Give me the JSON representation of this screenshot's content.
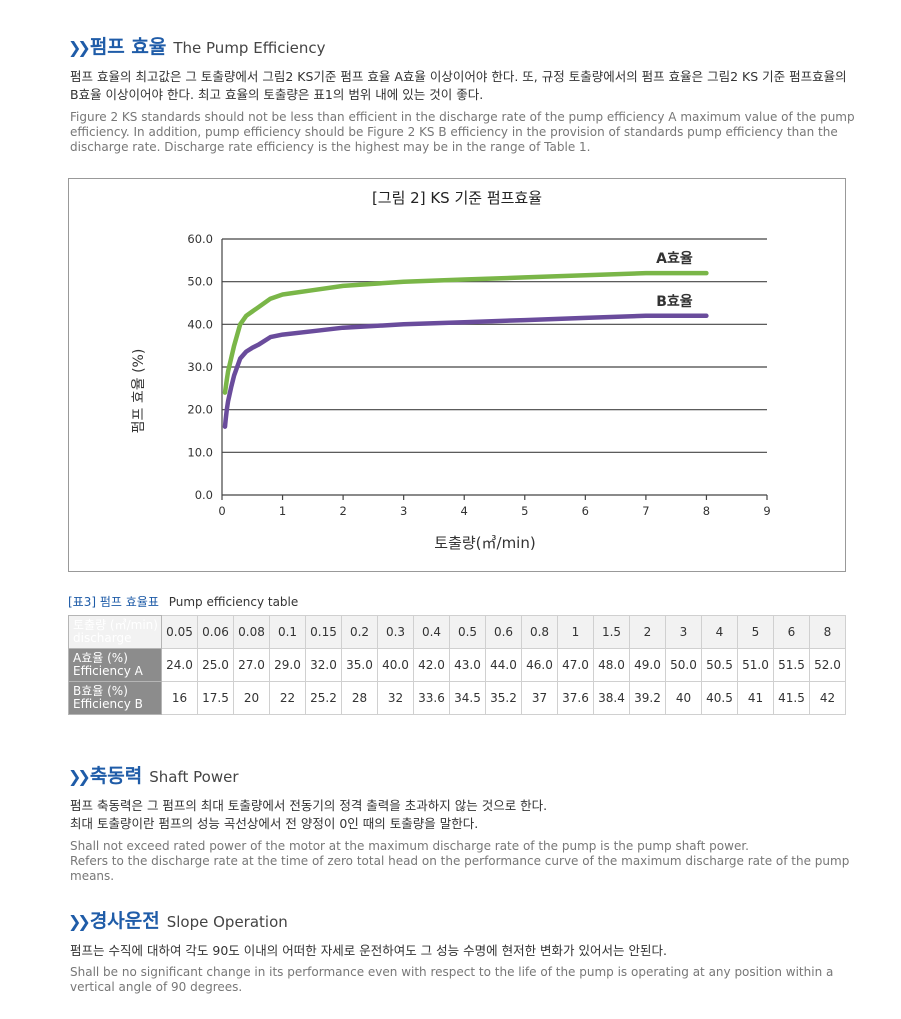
{
  "sections": {
    "efficiency": {
      "title_ko": "펌프 효율",
      "title_en": "The Pump Efficiency",
      "para_ko": "펌프 효율의 최고값은 그 토출량에서 그림2 KS기준 펌프 효율 A효율 이상이어야 한다. 또, 규정 토출량에서의 펌프 효율은 그림2 KS 기준 펌프효율의 B효율 이상이어야 한다. 최고 효율의 토출량은 표1의 범위 내에 있는 것이 좋다.",
      "para_en": "Figure 2 KS standards should not be less than efficient in the discharge rate of the pump efficiency A maximum value of the pump efficiency. In addition, pump efficiency should be Figure 2 KS B efficiency in the provision of standards pump efficiency than the discharge rate. Discharge rate efficiency is the highest may be in the range of Table 1."
    },
    "shaft": {
      "title_ko": "축동력",
      "title_en": "Shaft Power",
      "para_ko_1": "펌프 축동력은 그 펌프의 최대 토출량에서 전동기의 정격 출력을 초과하지 않는 것으로 한다.",
      "para_ko_2": "최대 토출량이란 펌프의 성능 곡선상에서 전 양정이 0인 때의 토출량을 말한다.",
      "para_en_1": "Shall not exceed rated power of the motor at the maximum discharge rate of the pump is the pump shaft power.",
      "para_en_2": "Refers to the discharge rate at the time of zero total head on the performance curve of the maximum discharge rate of the pump means."
    },
    "slope": {
      "title_ko": "경사운전",
      "title_en": "Slope Operation",
      "para_ko": "펌프는 수직에 대하여 각도 90도 이내의 어떠한 자세로 운전하여도 그 성능 수명에 현저한 변화가 있어서는 안된다.",
      "para_en": "Shall be no significant change in its performance even with respect to the life of the pump is operating at any position within a vertical angle of 90 degrees."
    }
  },
  "chart_data": {
    "type": "line",
    "title": "[그림 2] KS 기준 펌프효율",
    "xlabel": "토출량(㎥/min)",
    "ylabel": "펌프 효율 (%)",
    "xlim": [
      0,
      9
    ],
    "ylim": [
      0,
      60
    ],
    "x_ticks": [
      "0",
      "1",
      "2",
      "3",
      "4",
      "5",
      "6",
      "7",
      "8",
      "9"
    ],
    "y_ticks": [
      "0.0",
      "10.0",
      "20.0",
      "30.0",
      "40.0",
      "50.0",
      "60.0"
    ],
    "grid": "horizontal",
    "x": [
      0.05,
      0.06,
      0.08,
      0.1,
      0.15,
      0.2,
      0.3,
      0.4,
      0.5,
      0.6,
      0.8,
      1,
      1.5,
      2,
      3,
      4,
      5,
      6,
      7,
      8
    ],
    "series": [
      {
        "name": "A효율",
        "color": "#7ab648",
        "values": [
          24.0,
          25.0,
          27.0,
          29.0,
          32.0,
          35.0,
          40.0,
          42.0,
          43.0,
          44.0,
          46.0,
          47.0,
          48.0,
          49.0,
          50.0,
          50.5,
          51.0,
          51.5,
          52.0,
          52.0
        ]
      },
      {
        "name": "B효율",
        "color": "#6a4c9c",
        "values": [
          16,
          17.5,
          20,
          22,
          25.2,
          28,
          32,
          33.6,
          34.5,
          35.2,
          37,
          37.6,
          38.4,
          39.2,
          40,
          40.5,
          41,
          41.5,
          42,
          42
        ]
      }
    ]
  },
  "table": {
    "caption_ko": "[표3] 펌프 효율표",
    "caption_en": "Pump efficiency table",
    "rows": [
      {
        "head_1": "토출량 (㎥/min)",
        "head_2": "discharge",
        "cells": [
          "0.05",
          "0.06",
          "0.08",
          "0.1",
          "0.15",
          "0.2",
          "0.3",
          "0.4",
          "0.5",
          "0.6",
          "0.8",
          "1",
          "1.5",
          "2",
          "3",
          "4",
          "5",
          "6",
          "8"
        ]
      },
      {
        "head_1": "A효율 (%)",
        "head_2": "Efficiency A",
        "cells": [
          "24.0",
          "25.0",
          "27.0",
          "29.0",
          "32.0",
          "35.0",
          "40.0",
          "42.0",
          "43.0",
          "44.0",
          "46.0",
          "47.0",
          "48.0",
          "49.0",
          "50.0",
          "50.5",
          "51.0",
          "51.5",
          "52.0"
        ]
      },
      {
        "head_1": "B효율 (%)",
        "head_2": "Efficiency B",
        "cells": [
          "16",
          "17.5",
          "20",
          "22",
          "25.2",
          "28",
          "32",
          "33.6",
          "34.5",
          "35.2",
          "37",
          "37.6",
          "38.4",
          "39.2",
          "40",
          "40.5",
          "41",
          "41.5",
          "42"
        ]
      }
    ]
  },
  "colors": {
    "accent": "#1f5ca8",
    "row_header": "#8c8c8c"
  }
}
